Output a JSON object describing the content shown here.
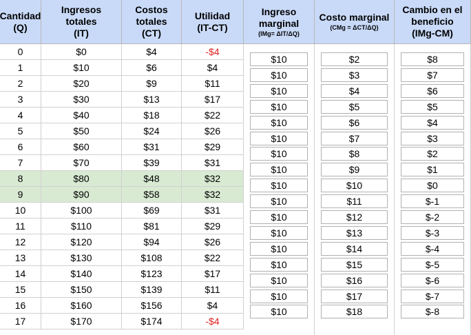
{
  "headers": {
    "q": [
      "Cantidad",
      "(Q)"
    ],
    "it": [
      "Ingresos",
      "totales",
      "(IT)"
    ],
    "ct": [
      "Costos",
      "totales",
      "(CT)"
    ],
    "ut": [
      "Utilidad",
      "(IT-CT)"
    ],
    "img": [
      "Ingreso",
      "marginal"
    ],
    "img_sub": "(IMg= ΔIT/ΔQ)",
    "cmg": [
      "Costo marginal"
    ],
    "cmg_sub": "(CMg = ΔCT/ΔQ)",
    "cb": [
      "Cambio en el",
      "beneficio",
      "(IMg-CM)"
    ]
  },
  "colors": {
    "header_bg": "#c9daf8",
    "highlight_bg": "#d9ead3",
    "negative_text": "#e02020"
  },
  "rows": [
    {
      "q": "0",
      "it": "$0",
      "ct": "$4",
      "ut": "-$4"
    },
    {
      "q": "1",
      "it": "$10",
      "ct": "$6",
      "ut": "$4"
    },
    {
      "q": "2",
      "it": "$20",
      "ct": "$9",
      "ut": "$11"
    },
    {
      "q": "3",
      "it": "$30",
      "ct": "$13",
      "ut": "$17"
    },
    {
      "q": "4",
      "it": "$40",
      "ct": "$18",
      "ut": "$22"
    },
    {
      "q": "5",
      "it": "$50",
      "ct": "$24",
      "ut": "$26"
    },
    {
      "q": "6",
      "it": "$60",
      "ct": "$31",
      "ut": "$29"
    },
    {
      "q": "7",
      "it": "$70",
      "ct": "$39",
      "ut": "$31"
    },
    {
      "q": "8",
      "it": "$80",
      "ct": "$48",
      "ut": "$32"
    },
    {
      "q": "9",
      "it": "$90",
      "ct": "$58",
      "ut": "$32"
    },
    {
      "q": "10",
      "it": "$100",
      "ct": "$69",
      "ut": "$31"
    },
    {
      "q": "11",
      "it": "$110",
      "ct": "$81",
      "ut": "$29"
    },
    {
      "q": "12",
      "it": "$120",
      "ct": "$94",
      "ut": "$26"
    },
    {
      "q": "13",
      "it": "$130",
      "ct": "$108",
      "ut": "$22"
    },
    {
      "q": "14",
      "it": "$140",
      "ct": "$123",
      "ut": "$17"
    },
    {
      "q": "15",
      "it": "$150",
      "ct": "$139",
      "ut": "$11"
    },
    {
      "q": "16",
      "it": "$160",
      "ct": "$156",
      "ut": "$4"
    },
    {
      "q": "17",
      "it": "$170",
      "ct": "$174",
      "ut": "-$4"
    }
  ],
  "highlight_rows": [
    8,
    9
  ],
  "negative_rows": [
    0,
    17
  ],
  "marginal": [
    {
      "img": "$10",
      "cmg": "$2",
      "cb": "$8"
    },
    {
      "img": "$10",
      "cmg": "$3",
      "cb": "$7"
    },
    {
      "img": "$10",
      "cmg": "$4",
      "cb": "$6"
    },
    {
      "img": "$10",
      "cmg": "$5",
      "cb": "$5"
    },
    {
      "img": "$10",
      "cmg": "$6",
      "cb": "$4"
    },
    {
      "img": "$10",
      "cmg": "$7",
      "cb": "$3"
    },
    {
      "img": "$10",
      "cmg": "$8",
      "cb": "$2"
    },
    {
      "img": "$10",
      "cmg": "$9",
      "cb": "$1"
    },
    {
      "img": "$10",
      "cmg": "$10",
      "cb": "$0"
    },
    {
      "img": "$10",
      "cmg": "$11",
      "cb": "$-1"
    },
    {
      "img": "$10",
      "cmg": "$12",
      "cb": "$-2"
    },
    {
      "img": "$10",
      "cmg": "$13",
      "cb": "$-3"
    },
    {
      "img": "$10",
      "cmg": "$14",
      "cb": "$-4"
    },
    {
      "img": "$10",
      "cmg": "$15",
      "cb": "$-5"
    },
    {
      "img": "$10",
      "cmg": "$16",
      "cb": "$-6"
    },
    {
      "img": "$10",
      "cmg": "$17",
      "cb": "$-7"
    },
    {
      "img": "$10",
      "cmg": "$18",
      "cb": "$-8"
    }
  ]
}
